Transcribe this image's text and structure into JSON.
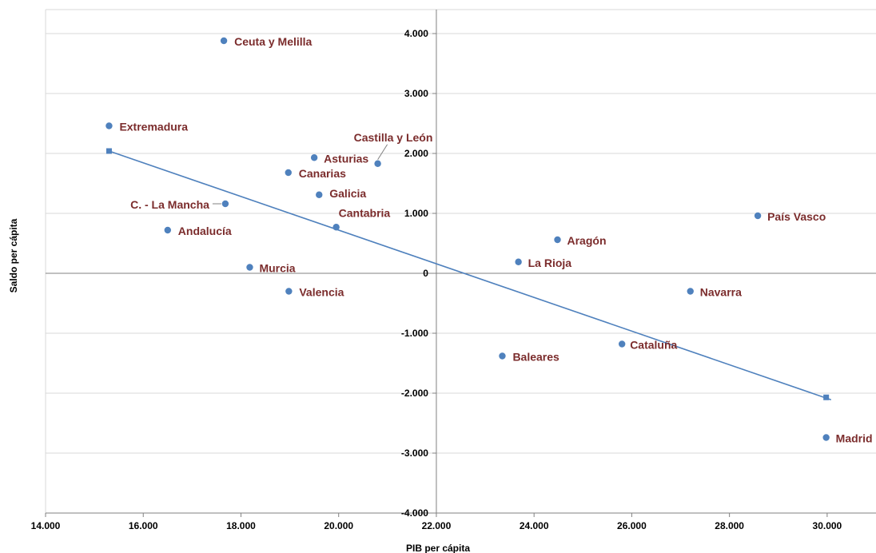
{
  "chart_data": {
    "type": "scatter",
    "title": "",
    "xlabel": "PIB per cápita",
    "ylabel": "Saldo per cápita",
    "xlim": [
      14000,
      31000
    ],
    "ylim": [
      -4000,
      4400
    ],
    "x_ticks": [
      14000,
      16000,
      18000,
      20000,
      22000,
      24000,
      26000,
      28000,
      30000
    ],
    "y_ticks": [
      -4000,
      -3000,
      -2000,
      -1000,
      0,
      1000,
      2000,
      3000,
      4000
    ],
    "x_tick_labels": [
      "14.000",
      "16.000",
      "18.000",
      "20.000",
      "22.000",
      "24.000",
      "26.000",
      "28.000",
      "30.000"
    ],
    "y_tick_labels": [
      "-4.000",
      "-3.000",
      "-2.000",
      "-1.000",
      "0",
      "1.000",
      "2.000",
      "3.000",
      "4.000"
    ],
    "grid": true,
    "colors": {
      "points": "#4f81bd",
      "trend": "#4f81bd",
      "labels": "#7b2c2c",
      "grid": "#d9d9d9",
      "axis": "#808080"
    },
    "points": [
      {
        "label": "Ceuta y Melilla",
        "x": 17650,
        "y": 3880
      },
      {
        "label": "Extremadura",
        "x": 15300,
        "y": 2460
      },
      {
        "label": "Castilla y León",
        "x": 20800,
        "y": 1830
      },
      {
        "label": "Asturias",
        "x": 19500,
        "y": 1930
      },
      {
        "label": "Canarias",
        "x": 18970,
        "y": 1680
      },
      {
        "label": "Galicia",
        "x": 19600,
        "y": 1310
      },
      {
        "label": "C. - La Mancha",
        "x": 17680,
        "y": 1160
      },
      {
        "label": "Cantabria",
        "x": 19950,
        "y": 770
      },
      {
        "label": "Andalucía",
        "x": 16500,
        "y": 720
      },
      {
        "label": "Murcia",
        "x": 18180,
        "y": 100
      },
      {
        "label": "Valencia",
        "x": 18980,
        "y": -300
      },
      {
        "label": "Aragón",
        "x": 24480,
        "y": 560
      },
      {
        "label": "La Rioja",
        "x": 23680,
        "y": 190
      },
      {
        "label": "País Vasco",
        "x": 28580,
        "y": 960
      },
      {
        "label": "Navarra",
        "x": 27200,
        "y": -300
      },
      {
        "label": "Cataluña",
        "x": 25800,
        "y": -1180
      },
      {
        "label": "Baleares",
        "x": 23350,
        "y": -1380
      },
      {
        "label": "Madrid",
        "x": 29980,
        "y": -2740
      }
    ],
    "trendline": {
      "x": [
        15300,
        30080
      ],
      "y": [
        2040,
        -2110
      ],
      "markers_x": [
        15300,
        29980
      ],
      "markers_y": [
        2040,
        -2070
      ]
    }
  }
}
